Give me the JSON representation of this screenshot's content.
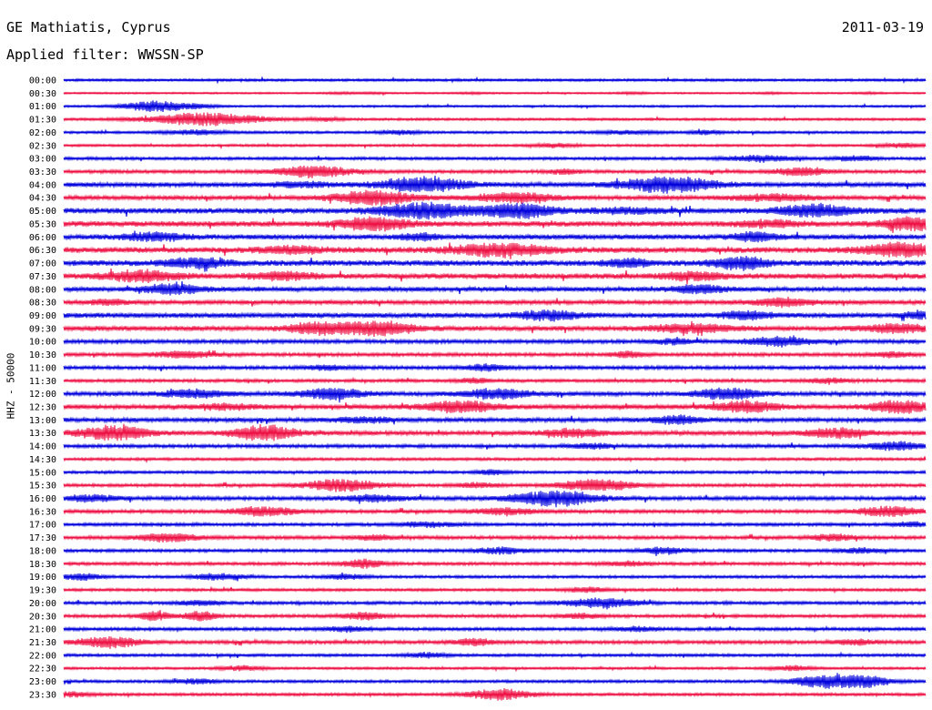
{
  "header": {
    "station": "GE Mathiatis, Cyprus",
    "filter": "Applied filter: WWSSN-SP",
    "date": "2011-03-19"
  },
  "chart_data": {
    "type": "line",
    "ylabel": "HHZ - 50000",
    "colors": [
      "#0000dd",
      "#ee1144"
    ],
    "traces": [
      {
        "label": "00:00",
        "amp": 1.0,
        "events": []
      },
      {
        "label": "00:30",
        "amp": 0.6,
        "events": [
          [
            375,
            0.08,
            0.15
          ],
          [
            410,
            0.08,
            0.12
          ],
          [
            518,
            0.08,
            0.15
          ],
          [
            695,
            0.1,
            0.15
          ],
          [
            845,
            0.08,
            0.12
          ],
          [
            955,
            0.08,
            0.12
          ]
        ]
      },
      {
        "label": "01:00",
        "amp": 0.8,
        "events": [
          [
            170,
            0.7,
            0.3
          ],
          [
            215,
            0.2,
            0.2
          ]
        ]
      },
      {
        "label": "01:30",
        "amp": 1.0,
        "events": [
          [
            225,
            0.85,
            0.55
          ],
          [
            360,
            0.2,
            0.15
          ]
        ]
      },
      {
        "label": "02:00",
        "amp": 1.0,
        "events": [
          [
            215,
            0.3,
            0.3
          ],
          [
            440,
            0.25,
            0.2
          ],
          [
            690,
            0.2,
            0.3
          ],
          [
            775,
            0.3,
            0.15
          ]
        ]
      },
      {
        "label": "02:30",
        "amp": 1.0,
        "events": [
          [
            610,
            0.25,
            0.2
          ],
          [
            990,
            0.25,
            0.2
          ]
        ]
      },
      {
        "label": "03:00",
        "amp": 1.3,
        "events": [
          [
            835,
            0.4,
            0.3
          ],
          [
            940,
            0.3,
            0.2
          ]
        ]
      },
      {
        "label": "03:30",
        "amp": 1.5,
        "events": [
          [
            345,
            0.8,
            0.35
          ],
          [
            880,
            0.5,
            0.25
          ],
          [
            620,
            0.3,
            0.15
          ]
        ]
      },
      {
        "label": "04:00",
        "amp": 2.2,
        "events": [
          [
            465,
            1.0,
            0.4
          ],
          [
            735,
            1.0,
            0.45
          ],
          [
            330,
            0.3,
            0.3
          ]
        ]
      },
      {
        "label": "04:30",
        "amp": 2.0,
        "events": [
          [
            410,
            0.9,
            0.4
          ],
          [
            565,
            0.6,
            0.4
          ],
          [
            850,
            0.4,
            0.4
          ]
        ]
      },
      {
        "label": "05:00",
        "amp": 2.6,
        "events": [
          [
            465,
            1.0,
            0.45
          ],
          [
            570,
            0.9,
            0.35
          ],
          [
            895,
            0.8,
            0.35
          ],
          [
            690,
            0.3,
            0.35
          ]
        ]
      },
      {
        "label": "05:30",
        "amp": 2.6,
        "events": [
          [
            410,
            0.8,
            0.35
          ],
          [
            1000,
            0.8,
            0.3
          ],
          [
            845,
            0.4,
            0.3
          ]
        ]
      },
      {
        "label": "06:00",
        "amp": 2.4,
        "events": [
          [
            170,
            0.5,
            0.3
          ],
          [
            460,
            0.4,
            0.2
          ],
          [
            830,
            0.6,
            0.2
          ]
        ]
      },
      {
        "label": "06:30",
        "amp": 2.8,
        "events": [
          [
            550,
            0.8,
            0.45
          ],
          [
            990,
            0.9,
            0.35
          ],
          [
            320,
            0.4,
            0.3
          ]
        ]
      },
      {
        "label": "07:00",
        "amp": 2.8,
        "events": [
          [
            215,
            0.6,
            0.3
          ],
          [
            690,
            0.5,
            0.2
          ],
          [
            815,
            0.8,
            0.25
          ]
        ]
      },
      {
        "label": "07:30",
        "amp": 2.6,
        "events": [
          [
            155,
            0.7,
            0.35
          ],
          [
            310,
            0.5,
            0.3
          ],
          [
            760,
            0.5,
            0.3
          ]
        ]
      },
      {
        "label": "08:00",
        "amp": 2.2,
        "events": [
          [
            190,
            0.6,
            0.3
          ],
          [
            770,
            0.5,
            0.25
          ]
        ]
      },
      {
        "label": "08:30",
        "amp": 2.0,
        "events": [
          [
            860,
            0.5,
            0.3
          ],
          [
            120,
            0.3,
            0.2
          ]
        ]
      },
      {
        "label": "09:00",
        "amp": 2.4,
        "events": [
          [
            600,
            0.6,
            0.3
          ],
          [
            820,
            0.5,
            0.25
          ],
          [
            1010,
            0.4,
            0.15
          ]
        ]
      },
      {
        "label": "09:30",
        "amp": 2.4,
        "events": [
          [
            350,
            0.7,
            0.3
          ],
          [
            415,
            0.9,
            0.35
          ],
          [
            760,
            0.5,
            0.4
          ],
          [
            985,
            0.5,
            0.3
          ]
        ]
      },
      {
        "label": "10:00",
        "amp": 1.8,
        "events": [
          [
            855,
            0.6,
            0.3
          ],
          [
            740,
            0.3,
            0.2
          ]
        ]
      },
      {
        "label": "10:30",
        "amp": 1.6,
        "events": [
          [
            200,
            0.4,
            0.3
          ],
          [
            690,
            0.4,
            0.15
          ],
          [
            980,
            0.3,
            0.2
          ]
        ]
      },
      {
        "label": "11:00",
        "amp": 1.6,
        "events": [
          [
            360,
            0.3,
            0.2
          ],
          [
            535,
            0.4,
            0.2
          ]
        ]
      },
      {
        "label": "11:30",
        "amp": 1.4,
        "events": [
          [
            520,
            0.3,
            0.15
          ],
          [
            910,
            0.3,
            0.2
          ]
        ]
      },
      {
        "label": "12:00",
        "amp": 2.0,
        "events": [
          [
            215,
            0.5,
            0.3
          ],
          [
            365,
            0.7,
            0.3
          ],
          [
            545,
            0.7,
            0.3
          ],
          [
            800,
            0.7,
            0.3
          ]
        ]
      },
      {
        "label": "12:30",
        "amp": 2.2,
        "events": [
          [
            505,
            0.7,
            0.35
          ],
          [
            820,
            0.7,
            0.3
          ],
          [
            990,
            0.8,
            0.3
          ],
          [
            250,
            0.3,
            0.3
          ]
        ]
      },
      {
        "label": "13:00",
        "amp": 2.0,
        "events": [
          [
            745,
            0.5,
            0.25
          ],
          [
            400,
            0.3,
            0.3
          ]
        ]
      },
      {
        "label": "13:30",
        "amp": 2.0,
        "events": [
          [
            125,
            0.9,
            0.35
          ],
          [
            290,
            1.0,
            0.3
          ],
          [
            630,
            0.5,
            0.3
          ],
          [
            920,
            0.6,
            0.3
          ]
        ]
      },
      {
        "label": "14:00",
        "amp": 1.6,
        "events": [
          [
            985,
            0.5,
            0.3
          ],
          [
            650,
            0.3,
            0.2
          ]
        ]
      },
      {
        "label": "14:30",
        "amp": 1.2,
        "events": []
      },
      {
        "label": "15:00",
        "amp": 1.2,
        "events": [
          [
            540,
            0.3,
            0.15
          ]
        ]
      },
      {
        "label": "15:30",
        "amp": 1.4,
        "events": [
          [
            375,
            0.8,
            0.35
          ],
          [
            655,
            0.8,
            0.35
          ],
          [
            525,
            0.3,
            0.2
          ]
        ]
      },
      {
        "label": "16:00",
        "amp": 1.8,
        "events": [
          [
            610,
            1.0,
            0.4
          ],
          [
            100,
            0.4,
            0.25
          ],
          [
            410,
            0.4,
            0.3
          ]
        ]
      },
      {
        "label": "16:30",
        "amp": 1.6,
        "events": [
          [
            290,
            0.6,
            0.3
          ],
          [
            555,
            0.4,
            0.3
          ],
          [
            975,
            0.6,
            0.3
          ]
        ]
      },
      {
        "label": "17:00",
        "amp": 1.4,
        "events": [
          [
            470,
            0.3,
            0.3
          ],
          [
            1000,
            0.3,
            0.15
          ]
        ]
      },
      {
        "label": "17:30",
        "amp": 1.6,
        "events": [
          [
            185,
            0.5,
            0.3
          ],
          [
            410,
            0.3,
            0.2
          ],
          [
            915,
            0.4,
            0.2
          ]
        ]
      },
      {
        "label": "18:00",
        "amp": 1.4,
        "events": [
          [
            550,
            0.4,
            0.25
          ],
          [
            730,
            0.4,
            0.2
          ],
          [
            945,
            0.3,
            0.2
          ]
        ]
      },
      {
        "label": "18:30",
        "amp": 1.4,
        "events": [
          [
            400,
            0.5,
            0.2
          ],
          [
            690,
            0.3,
            0.2
          ]
        ]
      },
      {
        "label": "19:00",
        "amp": 1.2,
        "events": [
          [
            90,
            0.4,
            0.2
          ],
          [
            240,
            0.4,
            0.25
          ],
          [
            380,
            0.3,
            0.2
          ]
        ]
      },
      {
        "label": "19:30",
        "amp": 1.2,
        "events": [
          [
            645,
            0.3,
            0.2
          ]
        ]
      },
      {
        "label": "20:00",
        "amp": 1.4,
        "events": [
          [
            660,
            0.6,
            0.35
          ],
          [
            220,
            0.3,
            0.2
          ]
        ]
      },
      {
        "label": "20:30",
        "amp": 1.4,
        "events": [
          [
            170,
            0.6,
            0.15
          ],
          [
            220,
            0.6,
            0.15
          ],
          [
            400,
            0.5,
            0.2
          ],
          [
            640,
            0.3,
            0.2
          ]
        ]
      },
      {
        "label": "21:00",
        "amp": 1.4,
        "events": [
          [
            380,
            0.3,
            0.2
          ],
          [
            700,
            0.3,
            0.2
          ]
        ]
      },
      {
        "label": "21:30",
        "amp": 1.6,
        "events": [
          [
            120,
            0.7,
            0.3
          ],
          [
            520,
            0.4,
            0.2
          ],
          [
            940,
            0.3,
            0.2
          ]
        ]
      },
      {
        "label": "22:00",
        "amp": 1.2,
        "events": [
          [
            470,
            0.3,
            0.2
          ]
        ]
      },
      {
        "label": "22:30",
        "amp": 1.0,
        "events": [
          [
            265,
            0.3,
            0.2
          ],
          [
            870,
            0.3,
            0.2
          ]
        ]
      },
      {
        "label": "23:00",
        "amp": 1.2,
        "events": [
          [
            905,
            0.8,
            0.3
          ],
          [
            950,
            0.7,
            0.25
          ],
          [
            215,
            0.3,
            0.2
          ]
        ]
      },
      {
        "label": "23:30",
        "amp": 1.2,
        "events": [
          [
            550,
            0.7,
            0.3
          ],
          [
            80,
            0.3,
            0.2
          ]
        ]
      }
    ]
  }
}
